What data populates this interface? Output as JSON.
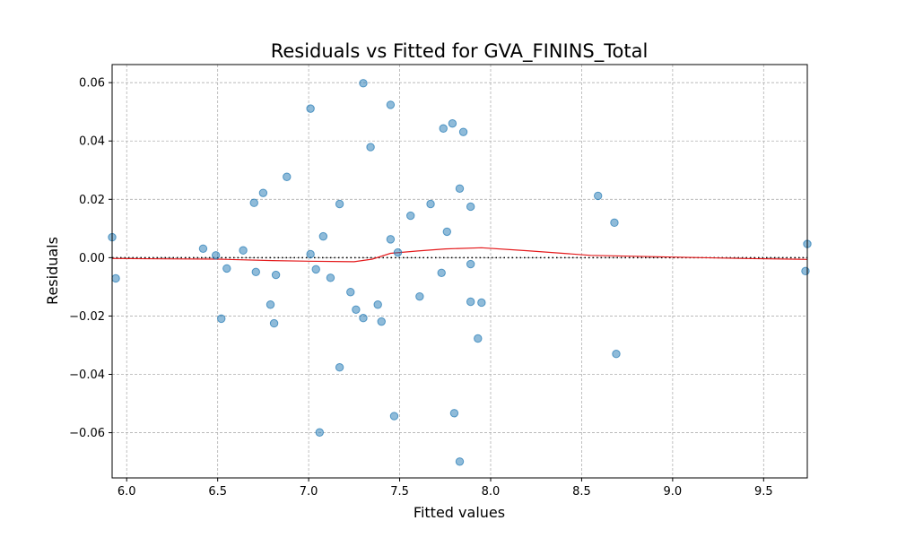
{
  "chart_data": {
    "type": "scatter",
    "title": "Residuals vs Fitted for GVA_FININS_Total",
    "xlabel": "Fitted values",
    "ylabel": "Residuals",
    "xlim": [
      5.92,
      9.74
    ],
    "ylim": [
      -0.0755,
      0.0662
    ],
    "xticks": [
      6.0,
      6.5,
      7.0,
      7.5,
      8.0,
      8.5,
      9.0,
      9.5
    ],
    "xtick_labels": [
      "6.0",
      "6.5",
      "7.0",
      "7.5",
      "8.0",
      "8.5",
      "9.0",
      "9.5"
    ],
    "yticks": [
      -0.06,
      -0.04,
      -0.02,
      0.0,
      0.02,
      0.04,
      0.06
    ],
    "ytick_labels": [
      "−0.06",
      "−0.04",
      "−0.02",
      "0.00",
      "0.02",
      "0.04",
      "0.06"
    ],
    "grid": true,
    "colors": {
      "points": "#1f77b4",
      "lowess": "#e41a1c",
      "zero_line": "#000000"
    },
    "points": [
      {
        "x": 5.92,
        "y": 0.007
      },
      {
        "x": 5.94,
        "y": -0.0071
      },
      {
        "x": 6.42,
        "y": 0.0031
      },
      {
        "x": 6.49,
        "y": 0.0008
      },
      {
        "x": 6.52,
        "y": -0.0209
      },
      {
        "x": 6.55,
        "y": -0.0037
      },
      {
        "x": 6.64,
        "y": 0.0025
      },
      {
        "x": 6.7,
        "y": 0.0188
      },
      {
        "x": 6.71,
        "y": -0.0049
      },
      {
        "x": 6.75,
        "y": 0.0222
      },
      {
        "x": 6.79,
        "y": -0.0161
      },
      {
        "x": 6.81,
        "y": -0.0225
      },
      {
        "x": 6.82,
        "y": -0.0059
      },
      {
        "x": 6.88,
        "y": 0.0277
      },
      {
        "x": 7.01,
        "y": 0.0511
      },
      {
        "x": 7.01,
        "y": 0.0012
      },
      {
        "x": 7.04,
        "y": -0.004
      },
      {
        "x": 7.06,
        "y": -0.0599
      },
      {
        "x": 7.08,
        "y": 0.0073
      },
      {
        "x": 7.12,
        "y": -0.0069
      },
      {
        "x": 7.17,
        "y": 0.0184
      },
      {
        "x": 7.17,
        "y": -0.0376
      },
      {
        "x": 7.23,
        "y": -0.0118
      },
      {
        "x": 7.26,
        "y": -0.0178
      },
      {
        "x": 7.3,
        "y": 0.0598
      },
      {
        "x": 7.3,
        "y": -0.0207
      },
      {
        "x": 7.34,
        "y": 0.0379
      },
      {
        "x": 7.38,
        "y": -0.0161
      },
      {
        "x": 7.4,
        "y": -0.0219
      },
      {
        "x": 7.45,
        "y": 0.0524
      },
      {
        "x": 7.45,
        "y": 0.0063
      },
      {
        "x": 7.47,
        "y": -0.0543
      },
      {
        "x": 7.49,
        "y": 0.0018
      },
      {
        "x": 7.56,
        "y": 0.0144
      },
      {
        "x": 7.61,
        "y": -0.0133
      },
      {
        "x": 7.67,
        "y": 0.0184
      },
      {
        "x": 7.73,
        "y": -0.0052
      },
      {
        "x": 7.74,
        "y": 0.0443
      },
      {
        "x": 7.76,
        "y": 0.0089
      },
      {
        "x": 7.79,
        "y": 0.046
      },
      {
        "x": 7.8,
        "y": -0.0533
      },
      {
        "x": 7.83,
        "y": 0.0237
      },
      {
        "x": 7.83,
        "y": -0.0699
      },
      {
        "x": 7.85,
        "y": 0.0431
      },
      {
        "x": 7.89,
        "y": 0.0175
      },
      {
        "x": 7.89,
        "y": -0.0022
      },
      {
        "x": 7.89,
        "y": -0.0151
      },
      {
        "x": 7.93,
        "y": -0.0277
      },
      {
        "x": 7.95,
        "y": -0.0154
      },
      {
        "x": 8.59,
        "y": 0.0212
      },
      {
        "x": 8.68,
        "y": 0.012
      },
      {
        "x": 8.69,
        "y": -0.033
      },
      {
        "x": 9.73,
        "y": -0.0046
      },
      {
        "x": 9.74,
        "y": 0.0047
      }
    ],
    "lowess_line": [
      {
        "x": 5.92,
        "y": -0.0003
      },
      {
        "x": 6.2,
        "y": -0.0004
      },
      {
        "x": 6.5,
        "y": -0.0005
      },
      {
        "x": 6.8,
        "y": -0.001
      },
      {
        "x": 7.0,
        "y": -0.0012
      },
      {
        "x": 7.25,
        "y": -0.0014
      },
      {
        "x": 7.35,
        "y": -0.0005
      },
      {
        "x": 7.45,
        "y": 0.0015
      },
      {
        "x": 7.6,
        "y": 0.0023
      },
      {
        "x": 7.75,
        "y": 0.003
      },
      {
        "x": 7.95,
        "y": 0.0034
      },
      {
        "x": 8.2,
        "y": 0.0024
      },
      {
        "x": 8.55,
        "y": 0.0008
      },
      {
        "x": 9.0,
        "y": 0.0002
      },
      {
        "x": 9.4,
        "y": -0.0003
      },
      {
        "x": 9.74,
        "y": -0.0006
      }
    ],
    "reference_line_y": 0.0
  }
}
